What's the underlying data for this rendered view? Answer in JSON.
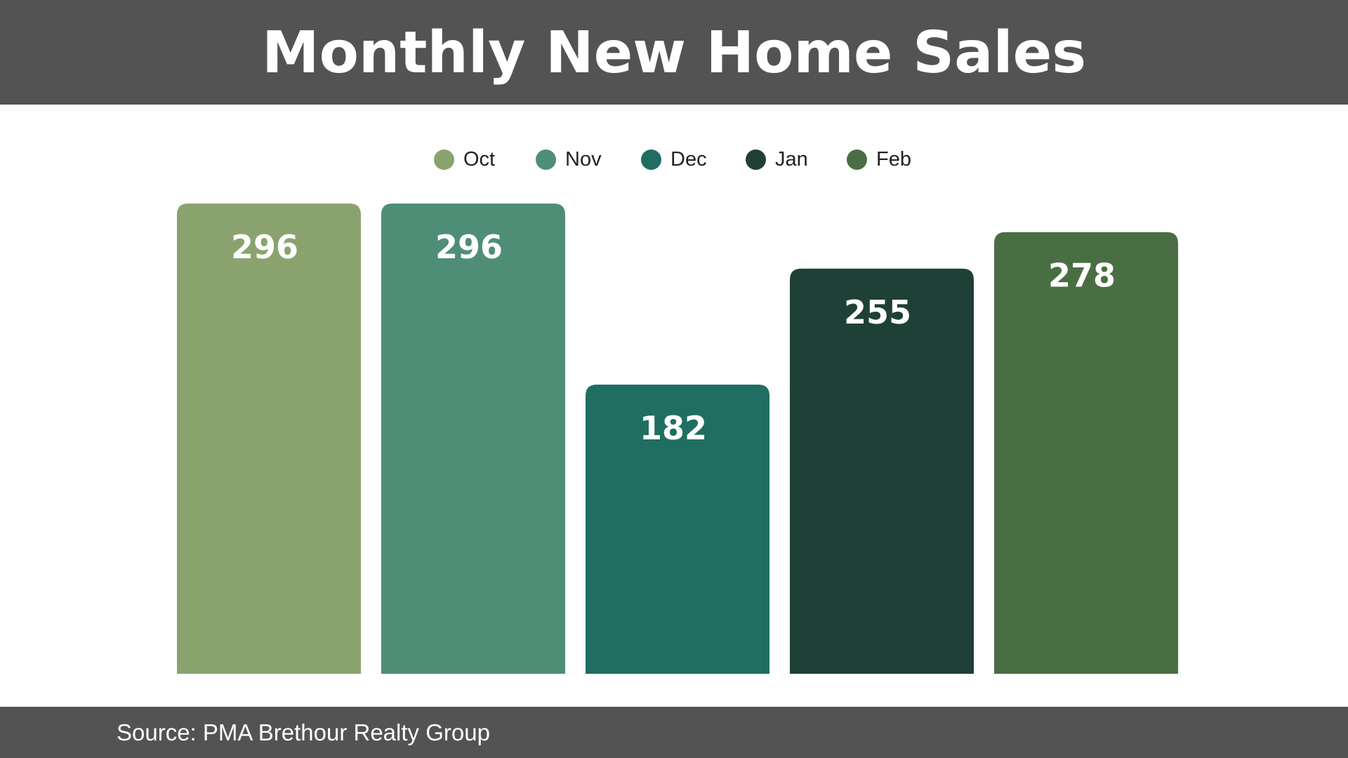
{
  "chart_data": {
    "type": "bar",
    "title": "Monthly New Home Sales",
    "categories": [
      "Oct",
      "Nov",
      "Dec",
      "Jan",
      "Feb"
    ],
    "values": [
      296,
      296,
      182,
      255,
      278
    ],
    "colors": [
      "#8aa36e",
      "#4e8e77",
      "#1f6e61",
      "#1f4037",
      "#4a6e43"
    ],
    "legend": {
      "position": "top-center",
      "entries": [
        "Oct",
        "Nov",
        "Dec",
        "Jan",
        "Feb"
      ]
    },
    "data_labels": [
      "296",
      "296",
      "182",
      "255",
      "278"
    ],
    "xlabel": "",
    "ylabel": "",
    "ylim": [
      0,
      296
    ],
    "grid": false
  },
  "header": {
    "title": "Monthly New Home Sales",
    "background": "#535353"
  },
  "footer": {
    "source": "Source: PMA Brethour Realty Group",
    "background": "#535353"
  }
}
